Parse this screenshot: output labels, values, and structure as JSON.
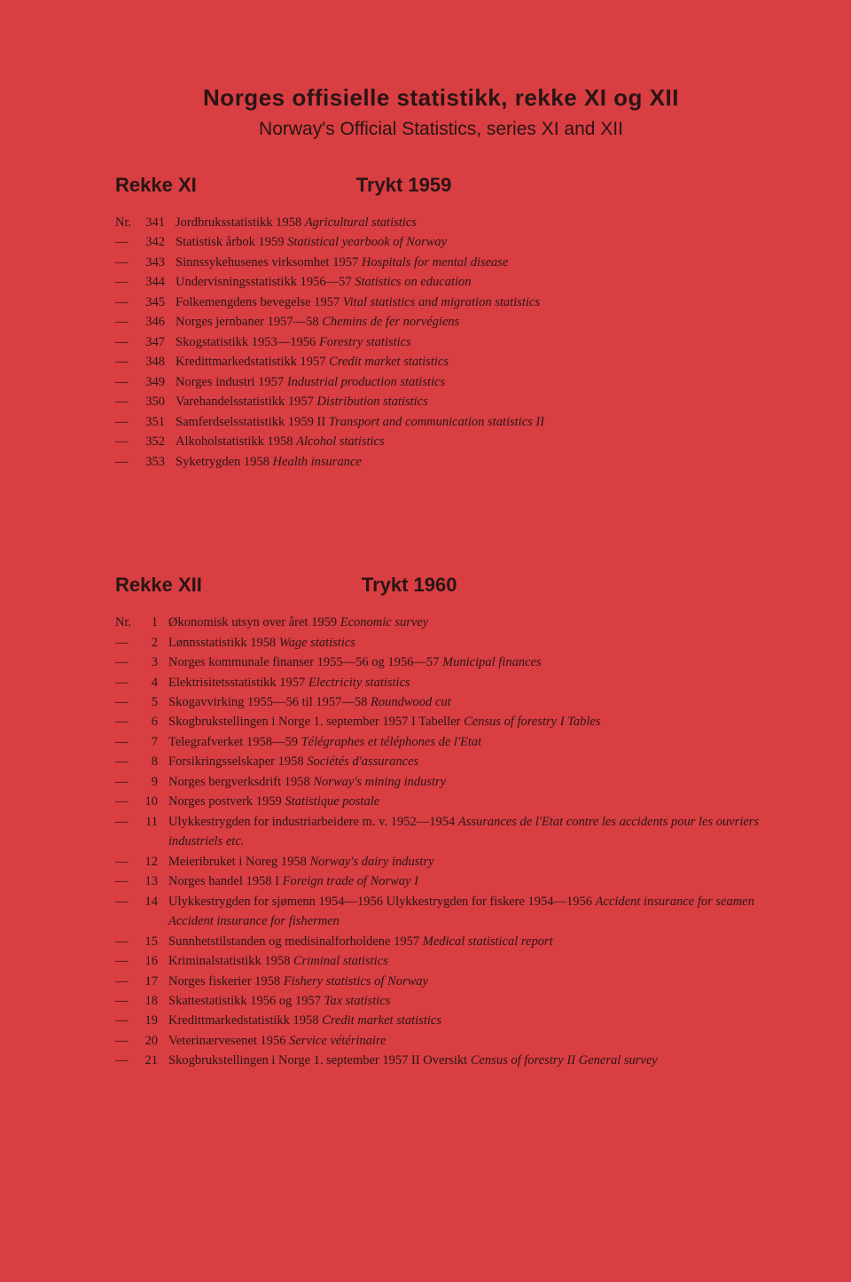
{
  "header": {
    "title": "Norges offisielle statistikk, rekke XI og XII",
    "subtitle": "Norway's Official Statistics, series XI and XII"
  },
  "series1": {
    "label": "Rekke XI",
    "printed": "Trykt 1959",
    "nr_prefix": "Nr.",
    "dash_prefix": "—",
    "entries": [
      {
        "num": "341",
        "text": "Jordbruksstatistikk 1958 ",
        "italic": "Agricultural statistics"
      },
      {
        "num": "342",
        "text": "Statistisk årbok 1959 ",
        "italic": "Statistical yearbook of Norway"
      },
      {
        "num": "343",
        "text": "Sinnssykehusenes virksomhet 1957 ",
        "italic": "Hospitals for mental disease"
      },
      {
        "num": "344",
        "text": "Undervisningsstatistikk 1956—57 ",
        "italic": "Statistics on education"
      },
      {
        "num": "345",
        "text": "Folkemengdens bevegelse 1957 ",
        "italic": "Vital statistics and migration statistics"
      },
      {
        "num": "346",
        "text": "Norges jernbaner 1957—58 ",
        "italic": "Chemins de fer norvégiens"
      },
      {
        "num": "347",
        "text": "Skogstatistikk 1953—1956 ",
        "italic": "Forestry statistics"
      },
      {
        "num": "348",
        "text": "Kredittmarkedstatistikk 1957 ",
        "italic": "Credit market statistics"
      },
      {
        "num": "349",
        "text": "Norges industri 1957 ",
        "italic": "Industrial production statistics"
      },
      {
        "num": "350",
        "text": "Varehandelsstatistikk 1957 ",
        "italic": "Distribution statistics"
      },
      {
        "num": "351",
        "text": "Samferdselsstatistikk 1959 II ",
        "italic": "Transport and communication statistics II"
      },
      {
        "num": "352",
        "text": "Alkoholstatistikk 1958 ",
        "italic": "Alcohol statistics"
      },
      {
        "num": "353",
        "text": "Syketrygden 1958 ",
        "italic": "Health insurance"
      }
    ]
  },
  "series2": {
    "label": "Rekke XII",
    "printed": "Trykt 1960",
    "nr_prefix": "Nr.",
    "dash_prefix": "—",
    "entries": [
      {
        "num": "1",
        "text": "Økonomisk utsyn over året 1959 ",
        "italic": "Economic survey"
      },
      {
        "num": "2",
        "text": "Lønnsstatistikk 1958 ",
        "italic": "Wage statistics"
      },
      {
        "num": "3",
        "text": "Norges kommunale finanser 1955—56 og 1956—57 ",
        "italic": "Municipal finances"
      },
      {
        "num": "4",
        "text": "Elektrisitetsstatistikk 1957 ",
        "italic": "Electricity statistics"
      },
      {
        "num": "5",
        "text": "Skogavvirking 1955—56 til 1957—58 ",
        "italic": "Roundwood cut"
      },
      {
        "num": "6",
        "text": "Skogbrukstellingen i Norge 1. september 1957 I Tabeller ",
        "italic": "Census of forestry I Tables"
      },
      {
        "num": "7",
        "text": "Telegrafverket 1958—59 ",
        "italic": "Télégraphes et téléphones de l'Etat"
      },
      {
        "num": "8",
        "text": "Forsikringsselskaper 1958 ",
        "italic": "Sociétés d'assurances"
      },
      {
        "num": "9",
        "text": "Norges bergverksdrift 1958 ",
        "italic": "Norway's mining industry"
      },
      {
        "num": "10",
        "text": "Norges postverk 1959 ",
        "italic": "Statistique postale"
      },
      {
        "num": "11",
        "text": "Ulykkestrygden for industriarbeidere m. v. 1952—1954 ",
        "italic": "Assurances de l'Etat contre les accidents pour les ouvriers industriels etc.",
        "wrap": true
      },
      {
        "num": "12",
        "text": "Meieribruket i Noreg 1958 ",
        "italic": "Norway's dairy industry"
      },
      {
        "num": "13",
        "text": "Norges handel 1958 I ",
        "italic": "Foreign trade of Norway I"
      },
      {
        "num": "14",
        "text": "Ulykkestrygden for sjømenn 1954—1956 Ulykkestrygden for fiskere 1954—1956 ",
        "italic": "Accident insurance for seamen Accident insurance for fishermen",
        "wrap": true,
        "italic_newline": true
      },
      {
        "num": "15",
        "text": "Sunnhetstilstanden og medisinalforholdene 1957 ",
        "italic": "Medical statistical report"
      },
      {
        "num": "16",
        "text": "Kriminalstatistikk 1958 ",
        "italic": "Criminal statistics"
      },
      {
        "num": "17",
        "text": "Norges fiskerier 1958 ",
        "italic": "Fishery statistics of Norway"
      },
      {
        "num": "18",
        "text": "Skattestatistikk 1956 og 1957 ",
        "italic": "Tax statistics"
      },
      {
        "num": "19",
        "text": "Kredittmarkedstatistikk 1958 ",
        "italic": "Credit market statistics"
      },
      {
        "num": "20",
        "text": "Veterinærvesenet 1956 ",
        "italic": "Service vétérinaire"
      },
      {
        "num": "21",
        "text": "Skogbrukstellingen i Norge 1. september 1957 II Oversikt ",
        "italic": "Census of forestry II General survey",
        "wrap": true
      }
    ]
  },
  "styling": {
    "background_color": "#d93e42",
    "text_color": "#2a1515",
    "title_fontsize": 26,
    "subtitle_fontsize": 21,
    "series_label_fontsize": 22,
    "entry_fontsize": 14.5
  }
}
